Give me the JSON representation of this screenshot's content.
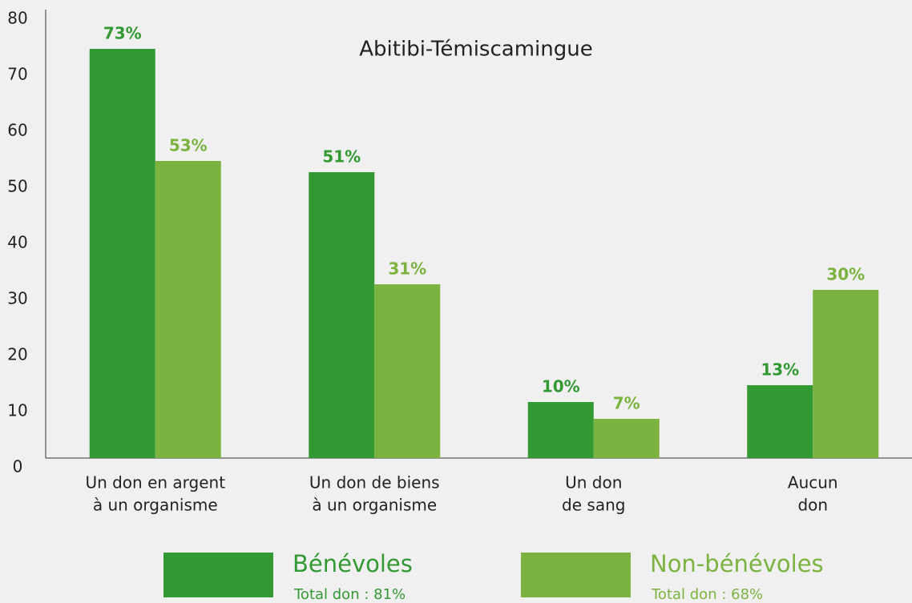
{
  "chart_data": {
    "type": "bar",
    "title": "Abitibi-Témiscamingue",
    "categories": [
      [
        "Un don en argent",
        "à un organisme"
      ],
      [
        "Un don de biens",
        "à un organisme"
      ],
      [
        "Un don",
        "de sang"
      ],
      [
        "Aucun",
        "don"
      ]
    ],
    "series": [
      {
        "name": "Bénévoles",
        "color": "#339933",
        "values": [
          73,
          51,
          10,
          13
        ],
        "value_labels": [
          "73%",
          "51%",
          "10%",
          "13%"
        ],
        "total": "Total don : 81%"
      },
      {
        "name": "Non-bénévoles",
        "color": "#7cb23f",
        "values": [
          53,
          31,
          7,
          30
        ],
        "value_labels": [
          "53%",
          "31%",
          "7%",
          "30%"
        ],
        "total": "Total don : 68%"
      }
    ],
    "ylim": [
      0,
      80
    ],
    "yticks": [
      0,
      10,
      20,
      30,
      40,
      50,
      60,
      70,
      80
    ],
    "grid": false
  }
}
